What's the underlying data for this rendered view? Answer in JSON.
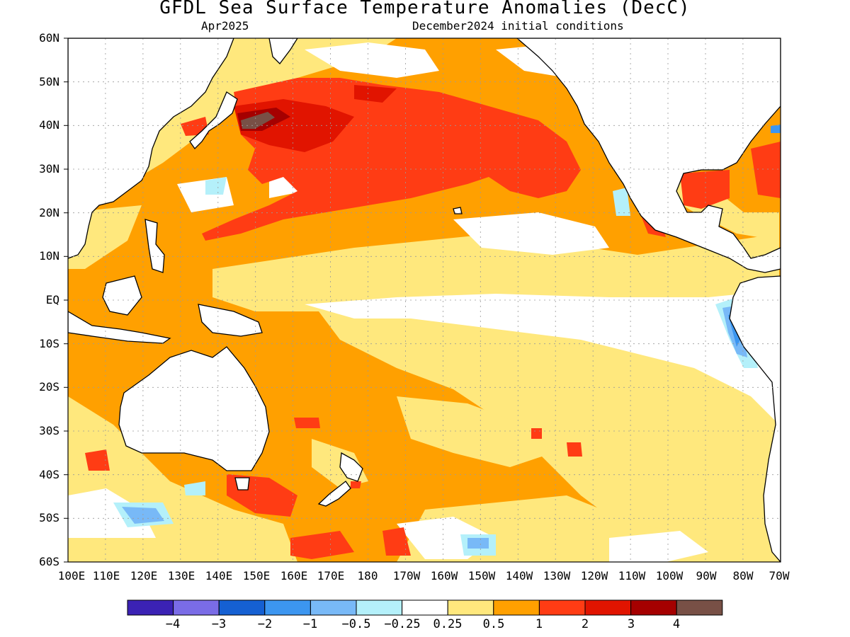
{
  "title": "GFDL Sea Surface Temperature Anomalies (DecC)",
  "subtitle_left": "Apr2025",
  "subtitle_right": "December2024 initial conditions",
  "lat_labels": [
    "60N",
    "50N",
    "40N",
    "30N",
    "20N",
    "10N",
    "EQ",
    "10S",
    "20S",
    "30S",
    "40S",
    "50S",
    "60S"
  ],
  "lon_labels": [
    "100E",
    "110E",
    "120E",
    "130E",
    "140E",
    "150E",
    "160E",
    "170E",
    "180",
    "170W",
    "160W",
    "150W",
    "140W",
    "130W",
    "120W",
    "110W",
    "100W",
    "90W",
    "80W",
    "70W"
  ],
  "colorbar": {
    "colors": [
      "#3b22b4",
      "#7a6ce6",
      "#1560d2",
      "#3c96f0",
      "#78b9f7",
      "#b4f0fa",
      "#ffffff",
      "#ffe87d",
      "#ffa000",
      "#ff3c14",
      "#e11400",
      "#a50000",
      "#785046"
    ],
    "labels": [
      "−4",
      "−3",
      "−2",
      "−1",
      "−0.5",
      "−0.25",
      "0.25",
      "0.5",
      "1",
      "2",
      "3",
      "4"
    ]
  },
  "map": {
    "ocean_default_color": "#ffa000",
    "land_color": "#ffffff",
    "grid": true
  }
}
